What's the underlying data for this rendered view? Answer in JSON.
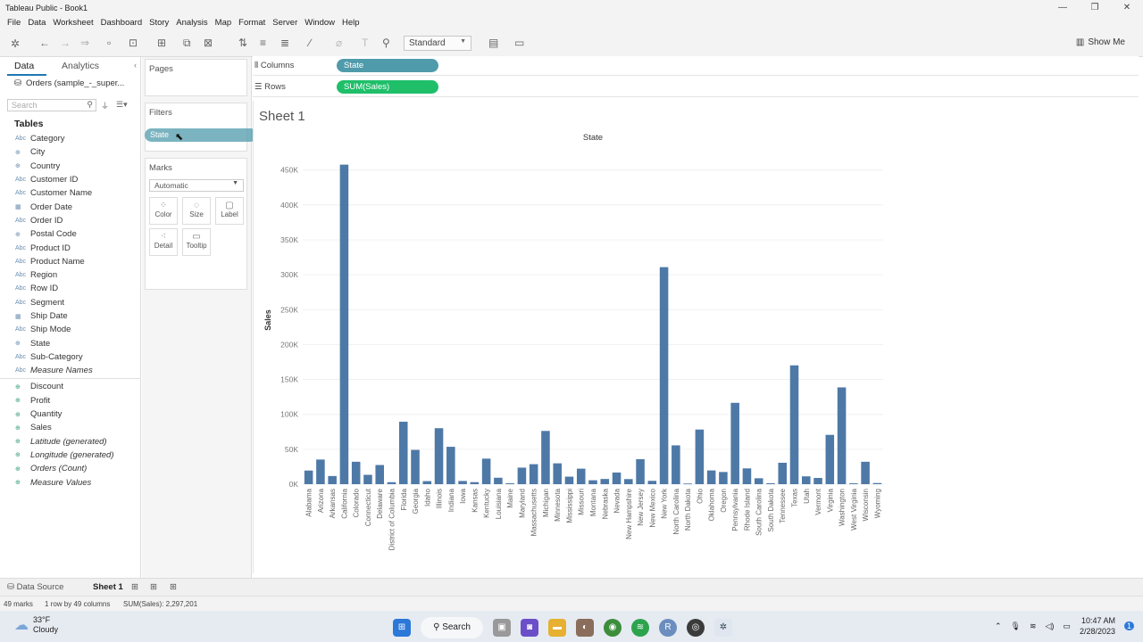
{
  "window": {
    "title": "Tableau Public - Book1"
  },
  "menu": [
    "File",
    "Data",
    "Worksheet",
    "Dashboard",
    "Story",
    "Analysis",
    "Map",
    "Format",
    "Server",
    "Window",
    "Help"
  ],
  "toolbar": {
    "fit_select": "Standard",
    "show_me": "Show Me"
  },
  "data_pane": {
    "tab_data": "Data",
    "tab_analytics": "Analytics",
    "datasource": "Orders (sample_-_super...",
    "search_placeholder": "Search",
    "tables_heading": "Tables",
    "dimensions": [
      {
        "label": "Category",
        "icon": "Abc"
      },
      {
        "label": "City",
        "icon": "globe"
      },
      {
        "label": "Country",
        "icon": "globe"
      },
      {
        "label": "Customer ID",
        "icon": "Abc"
      },
      {
        "label": "Customer Name",
        "icon": "Abc"
      },
      {
        "label": "Order Date",
        "icon": "calendar"
      },
      {
        "label": "Order ID",
        "icon": "Abc"
      },
      {
        "label": "Postal Code",
        "icon": "globe"
      },
      {
        "label": "Product ID",
        "icon": "Abc"
      },
      {
        "label": "Product Name",
        "icon": "Abc"
      },
      {
        "label": "Region",
        "icon": "Abc"
      },
      {
        "label": "Row ID",
        "icon": "Abc"
      },
      {
        "label": "Segment",
        "icon": "Abc"
      },
      {
        "label": "Ship Date",
        "icon": "calendar"
      },
      {
        "label": "Ship Mode",
        "icon": "Abc"
      },
      {
        "label": "State",
        "icon": "globe"
      },
      {
        "label": "Sub-Category",
        "icon": "Abc"
      },
      {
        "label": "Measure Names",
        "icon": "Abc",
        "italic": true
      }
    ],
    "measures": [
      {
        "label": "Discount",
        "icon": "#"
      },
      {
        "label": "Profit",
        "icon": "#"
      },
      {
        "label": "Quantity",
        "icon": "#"
      },
      {
        "label": "Sales",
        "icon": "#"
      },
      {
        "label": "Latitude (generated)",
        "icon": "globe",
        "italic": true
      },
      {
        "label": "Longitude (generated)",
        "icon": "globe",
        "italic": true
      },
      {
        "label": "Orders (Count)",
        "icon": "#",
        "italic": true
      },
      {
        "label": "Measure Values",
        "icon": "#",
        "italic": true
      }
    ]
  },
  "cards": {
    "pages": "Pages",
    "filters": "Filters",
    "dragging_pill": "State",
    "marks": "Marks",
    "mark_type": "Automatic",
    "mark_buttons": [
      "Color",
      "Size",
      "Label",
      "Detail",
      "Tooltip"
    ]
  },
  "shelves": {
    "columns_label": "Columns",
    "columns_pill": "State",
    "rows_label": "Rows",
    "rows_pill": "SUM(Sales)"
  },
  "sheet": {
    "title": "Sheet 1"
  },
  "chart_data": {
    "type": "bar",
    "title": "State",
    "xlabel": "",
    "ylabel": "Sales",
    "ylim": [
      0,
      470000
    ],
    "yticks": [
      "0K",
      "50K",
      "100K",
      "150K",
      "200K",
      "250K",
      "300K",
      "350K",
      "400K",
      "450K"
    ],
    "grid": true,
    "color": "#4e79a7",
    "categories": [
      "Alabama",
      "Arizona",
      "Arkansas",
      "California",
      "Colorado",
      "Connecticut",
      "Delaware",
      "District of Columbia",
      "Florida",
      "Georgia",
      "Idaho",
      "Illinois",
      "Indiana",
      "Iowa",
      "Kansas",
      "Kentucky",
      "Louisiana",
      "Maine",
      "Maryland",
      "Massachusetts",
      "Michigan",
      "Minnesota",
      "Mississippi",
      "Missouri",
      "Montana",
      "Nebraska",
      "Nevada",
      "New Hampshire",
      "New Jersey",
      "New Mexico",
      "New York",
      "North Carolina",
      "North Dakota",
      "Ohio",
      "Oklahoma",
      "Oregon",
      "Pennsylvania",
      "Rhode Island",
      "South Carolina",
      "South Dakota",
      "Tennessee",
      "Texas",
      "Utah",
      "Vermont",
      "Virginia",
      "Washington",
      "West Virginia",
      "Wisconsin",
      "Wyoming"
    ],
    "values": [
      19511,
      35282,
      11678,
      457688,
      32108,
      13384,
      27451,
      2865,
      89474,
      49096,
      4382,
      80166,
      53555,
      4580,
      2914,
      36592,
      9217,
      1271,
      23706,
      28634,
      76270,
      29863,
      10771,
      22205,
      5589,
      7465,
      16729,
      7293,
      35764,
      4784,
      310876,
      55603,
      920,
      78258,
      19683,
      17431,
      116512,
      22628,
      8482,
      1316,
      30662,
      170188,
      11220,
      8929,
      70637,
      138641,
      1210,
      32115,
      1603
    ]
  },
  "bottom": {
    "data_source": "Data Source",
    "sheet_tab": "Sheet 1"
  },
  "status": {
    "marks": "49 marks",
    "rows_cols": "1 row by 49 columns",
    "sum": "SUM(Sales): 2,297,201"
  },
  "taskbar": {
    "temp": "33°F",
    "condition": "Cloudy",
    "search": "Search",
    "time": "10:47 AM",
    "date": "2/28/2023"
  }
}
